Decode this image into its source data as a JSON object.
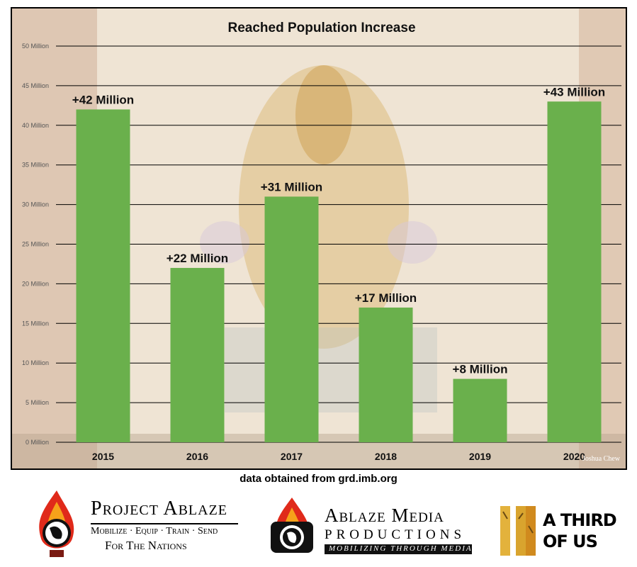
{
  "chart_data": {
    "type": "bar",
    "title": "Reached Population Increase",
    "categories": [
      "2015",
      "2016",
      "2017",
      "2018",
      "2019",
      "2020"
    ],
    "values": [
      42,
      22,
      31,
      17,
      8,
      43
    ],
    "value_labels": [
      "+42 Million",
      "+22 Million",
      "+31 Million",
      "+17 Million",
      "+8 Million",
      "+43 Million"
    ],
    "yticks": [
      "0 Million",
      "5 Million",
      "10 Million",
      "15 Million",
      "20 Million",
      "25 Million",
      "30 Million",
      "35 Million",
      "40 Million",
      "45 Million",
      "50 Million"
    ],
    "ylim": [
      0,
      50
    ],
    "grid": true,
    "bar_color": "#6ab04c"
  },
  "photo_credit": "Joshua Chew",
  "source_note": "data obtained from grd.imb.org",
  "logos": {
    "project_ablaze": {
      "name": "Project Ablaze",
      "tagline1": "Mobilize · Equip · Train · Send",
      "tagline2": "For The Nations"
    },
    "ablaze_media": {
      "name": "Ablaze Media",
      "line2": "Productions",
      "tagline": "Mobilizing Through Media"
    },
    "a_third_of_us": {
      "line1": "A Third",
      "line2": "Of Us"
    }
  }
}
